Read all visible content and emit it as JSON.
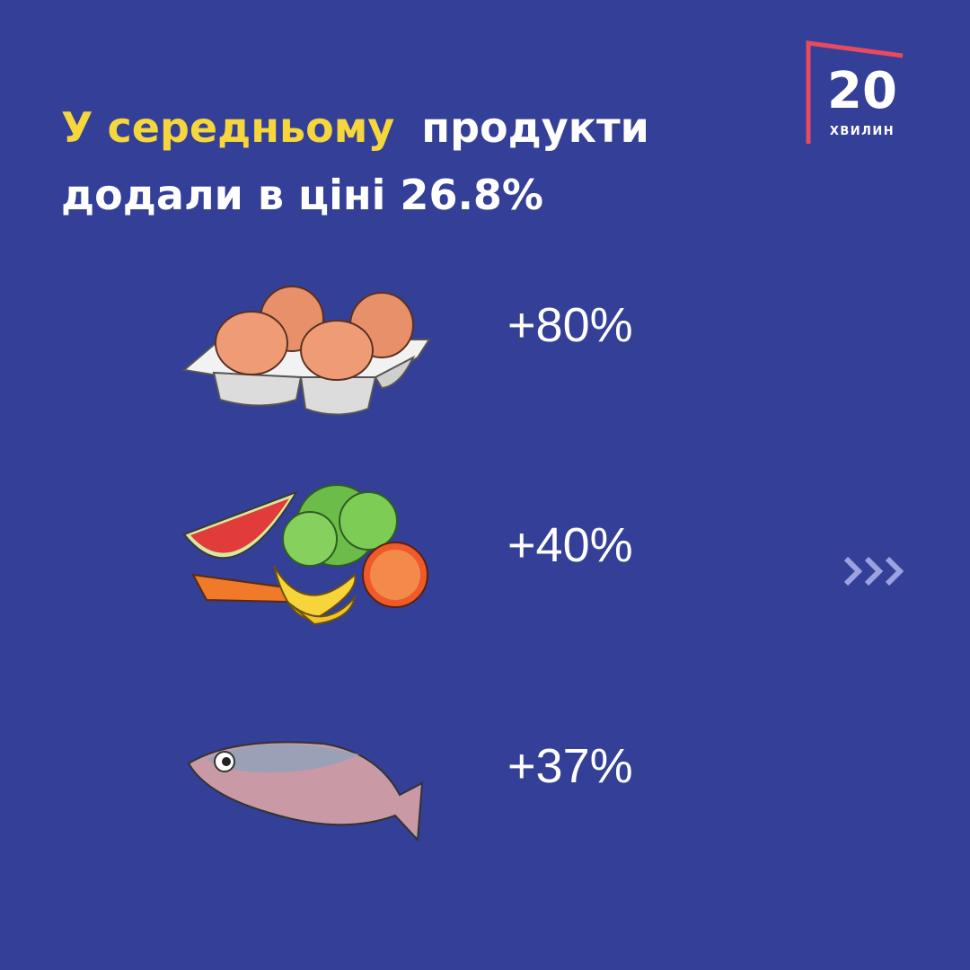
{
  "header": {
    "title": {
      "highlight": "У середньому",
      "line1_rest": "продукти",
      "line2": "додали в ціні 26.8%"
    }
  },
  "logo": {
    "number": "20",
    "word": "ХВИЛИН"
  },
  "items": [
    {
      "value": "+80%"
    },
    {
      "value": "+40%"
    },
    {
      "value": "+37%"
    }
  ]
}
